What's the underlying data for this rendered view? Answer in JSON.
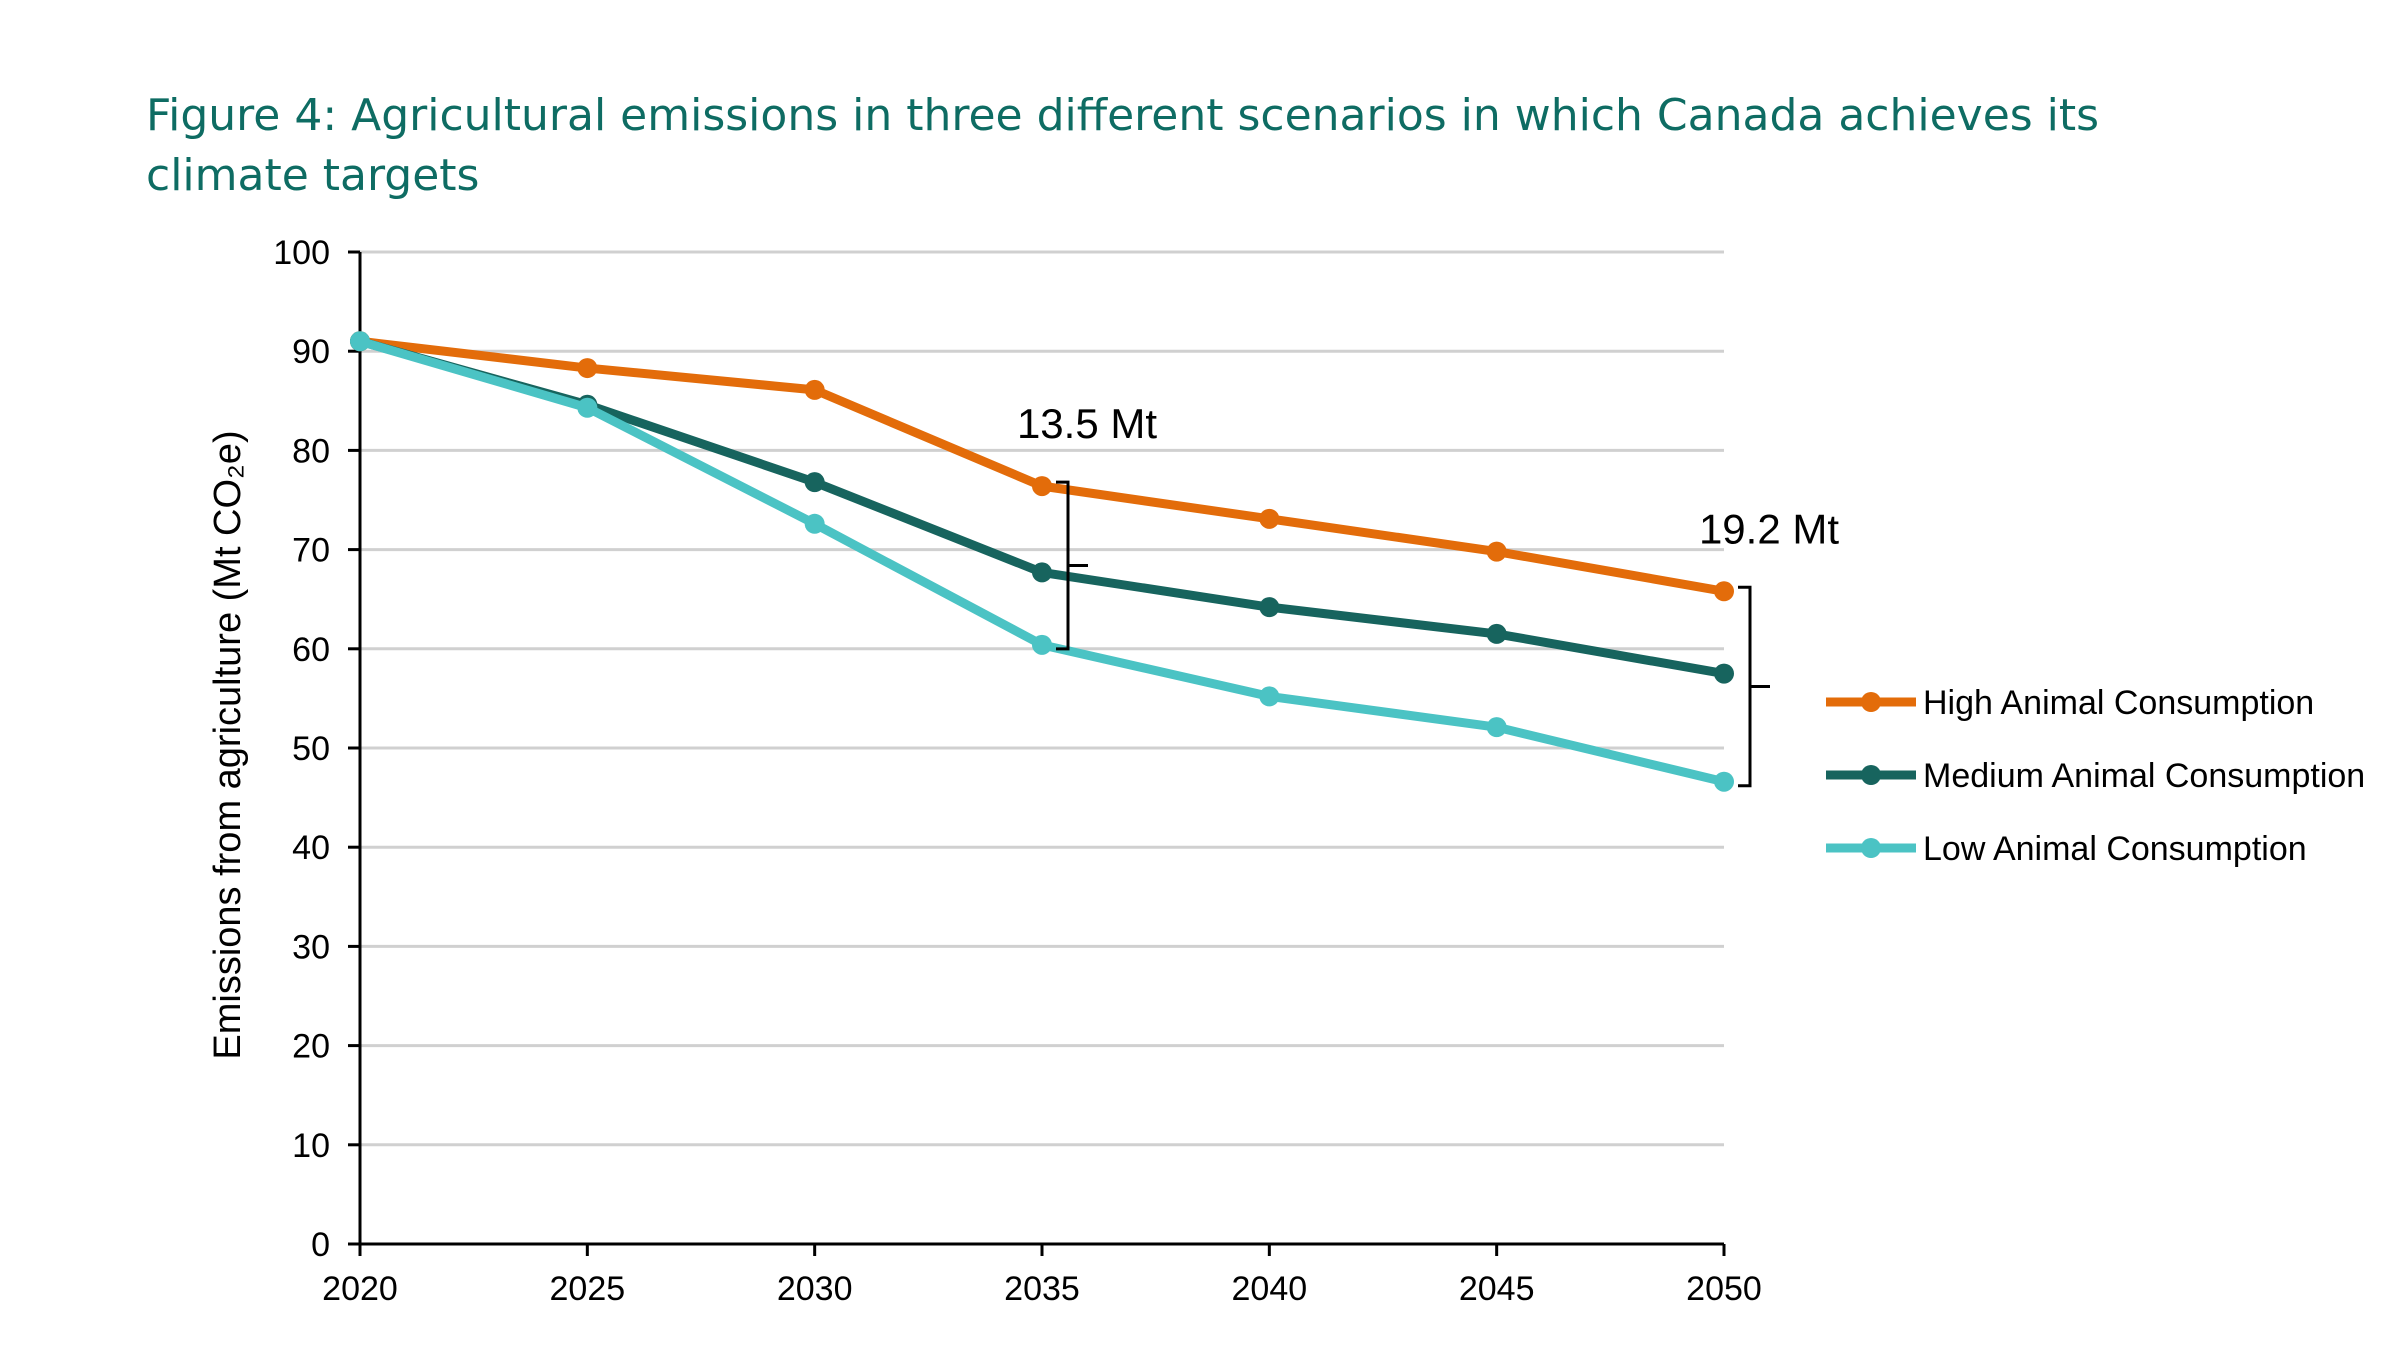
{
  "chart_data": {
    "type": "line",
    "title": "Figure 4: Agricultural emissions in three different scenarios in which Canada achieves its climate targets",
    "xlabel": "",
    "ylabel": "Emissions from agriculture (Mt CO₂e)",
    "x": [
      2020,
      2025,
      2030,
      2035,
      2040,
      2045,
      2050
    ],
    "ylim": [
      0,
      100
    ],
    "yticks": [
      0,
      10,
      20,
      30,
      40,
      50,
      60,
      70,
      80,
      90,
      100
    ],
    "grid": true,
    "legend_position": "right",
    "series": [
      {
        "name": "High Animal Consumption",
        "color": "#e36c0a",
        "values": [
          91,
          88.3,
          86.1,
          76.4,
          73.1,
          69.8,
          65.8
        ]
      },
      {
        "name": "Medium Animal Consumption",
        "color": "#17645e",
        "values": [
          91,
          84.6,
          76.8,
          67.7,
          64.2,
          61.5,
          57.5
        ]
      },
      {
        "name": "Low Animal Consumption",
        "color": "#4bc3c4",
        "values": [
          91,
          84.3,
          72.6,
          60.4,
          55.2,
          52.1,
          46.6
        ]
      }
    ],
    "annotations": [
      {
        "text": "13.5 Mt",
        "x": 2035
      },
      {
        "text": "19.2 Mt",
        "x": 2050
      }
    ]
  }
}
